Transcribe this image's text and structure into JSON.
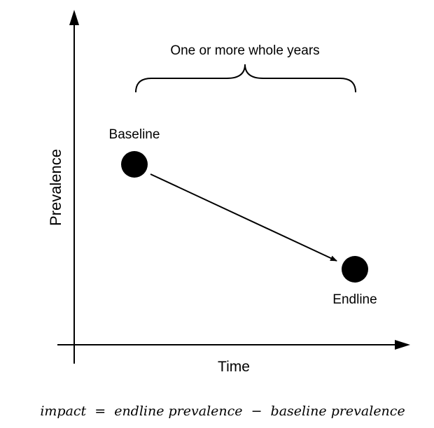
{
  "diagram": {
    "y_axis_label": "Prevalence",
    "x_axis_label": "Time",
    "brace_label": "One or more whole years",
    "points": {
      "baseline": "Baseline",
      "endline": "Endline"
    },
    "formula": {
      "impact": "impact",
      "eq": "=",
      "endline_prev": "endline prevalence",
      "minus": "−",
      "baseline_prev": "baseline prevalence"
    },
    "colors": {
      "ink": "#000000",
      "background": "#ffffff"
    }
  }
}
